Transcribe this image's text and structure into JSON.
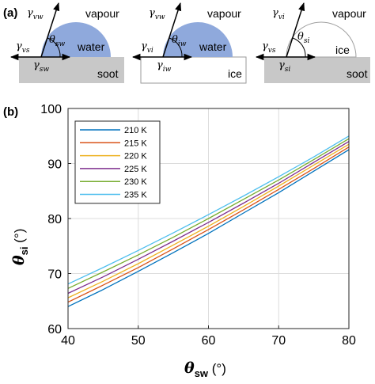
{
  "panel_a": {
    "tag": "(a)",
    "diagrams": [
      {
        "phase_top": "vapour",
        "drop": "water",
        "substrate": "soot",
        "angle_symbol": "θ",
        "angle_sub": "sw",
        "g_top": "γ",
        "g_top_sub": "vw",
        "g_left": "γ",
        "g_left_sub": "vs",
        "g_bottom": "γ",
        "g_bottom_sub": "sw",
        "drop_color": "#8fa9dc",
        "substrate_color": "#c8c8c8"
      },
      {
        "phase_top": "vapour",
        "drop": "water",
        "substrate": "ice",
        "angle_symbol": "θ",
        "angle_sub": "iw",
        "g_top": "γ",
        "g_top_sub": "vw",
        "g_left": "γ",
        "g_left_sub": "vi",
        "g_bottom": "γ",
        "g_bottom_sub": "iw",
        "drop_color": "#8fa9dc",
        "substrate_color": "#ffffff"
      },
      {
        "phase_top": "vapour",
        "drop": "ice",
        "substrate": "soot",
        "angle_symbol": "θ",
        "angle_sub": "si",
        "g_top": "γ",
        "g_top_sub": "vi",
        "g_left": "γ",
        "g_left_sub": "vs",
        "g_bottom": "γ",
        "g_bottom_sub": "si",
        "drop_color": "#ffffff",
        "substrate_color": "#c8c8c8"
      }
    ]
  },
  "panel_b": {
    "tag": "(b)",
    "xlabel_symbol": "θ",
    "xlabel_sub": "sw",
    "xlabel_unit": " (°)",
    "ylabel_symbol": "θ",
    "ylabel_sub": "si",
    "ylabel_unit": " (°)"
  },
  "chart_data": {
    "type": "line",
    "xlim": [
      40,
      80
    ],
    "ylim": [
      60,
      100
    ],
    "xticks": [
      40,
      50,
      60,
      70,
      80
    ],
    "yticks": [
      60,
      70,
      80,
      90,
      100
    ],
    "grid": true,
    "legend_position": "top-left",
    "x": [
      40,
      45,
      50,
      55,
      60,
      65,
      70,
      75,
      80
    ],
    "series": [
      {
        "name": "210 K",
        "color": "#0072bd",
        "values": [
          64.0,
          67.1,
          70.4,
          73.8,
          77.3,
          81.0,
          84.7,
          88.6,
          92.5
        ]
      },
      {
        "name": "215 K",
        "color": "#d95319",
        "values": [
          64.8,
          67.9,
          71.1,
          74.5,
          78.0,
          81.6,
          85.3,
          89.1,
          93.0
        ]
      },
      {
        "name": "220 K",
        "color": "#edb120",
        "values": [
          65.6,
          68.6,
          71.8,
          75.2,
          78.6,
          82.2,
          85.9,
          89.7,
          93.5
        ]
      },
      {
        "name": "225 K",
        "color": "#7e2f8e",
        "values": [
          66.4,
          69.4,
          72.6,
          75.9,
          79.3,
          82.8,
          86.4,
          90.2,
          94.0
        ]
      },
      {
        "name": "230 K",
        "color": "#77ac30",
        "values": [
          67.3,
          70.3,
          73.4,
          76.6,
          80.0,
          83.5,
          87.0,
          90.7,
          94.5
        ]
      },
      {
        "name": "235 K",
        "color": "#4dbeee",
        "values": [
          68.1,
          71.1,
          74.2,
          77.4,
          80.7,
          84.1,
          87.6,
          91.2,
          95.0
        ]
      }
    ]
  }
}
